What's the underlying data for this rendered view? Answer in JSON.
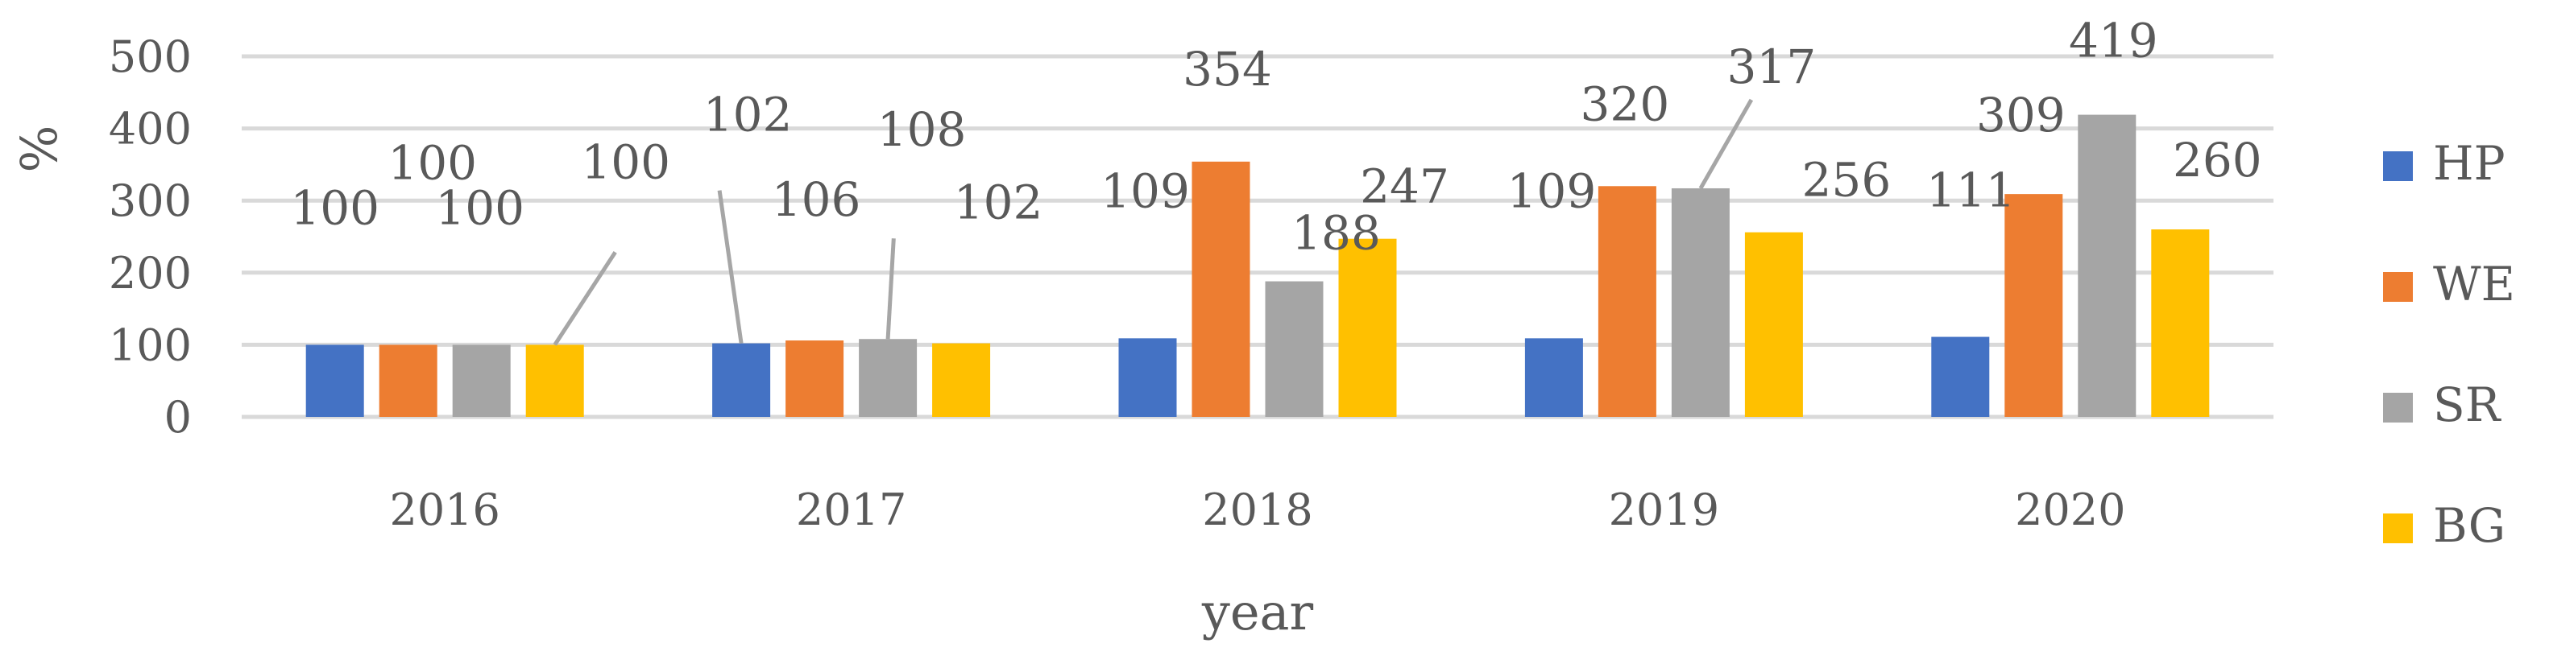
{
  "chart_data": {
    "type": "bar",
    "title": "",
    "xlabel": "year",
    "ylabel": "%",
    "categories": [
      "2016",
      "2017",
      "2018",
      "2019",
      "2020"
    ],
    "ylim": [
      0,
      500
    ],
    "yticks": [
      0,
      100,
      200,
      300,
      400,
      500
    ],
    "grid": true,
    "legend_position": "right",
    "series": [
      {
        "name": "HP",
        "color": "#4472C4",
        "values": [
          100,
          102,
          109,
          109,
          111
        ]
      },
      {
        "name": "WE",
        "color": "#ED7D31",
        "values": [
          100,
          106,
          354,
          320,
          309
        ]
      },
      {
        "name": "SR",
        "color": "#A5A5A5",
        "values": [
          100,
          108,
          188,
          317,
          419
        ]
      },
      {
        "name": "BG",
        "color": "#FFC000",
        "values": [
          100,
          102,
          247,
          256,
          260
        ]
      }
    ]
  }
}
